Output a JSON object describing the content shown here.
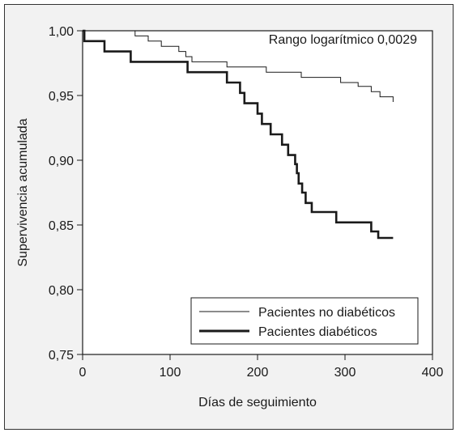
{
  "chart_data": {
    "type": "line",
    "subtype": "kaplan-meier-step",
    "xlabel": "Días de seguimiento",
    "ylabel": "Supervivencia acumulada",
    "annotation": "Rango logarítmico 0,0029",
    "xlim": [
      0,
      400
    ],
    "ylim": [
      0.75,
      1.0
    ],
    "xticks": [
      0,
      100,
      200,
      300,
      400
    ],
    "yticks": [
      0.75,
      0.8,
      0.85,
      0.9,
      0.95,
      1.0
    ],
    "xtick_labels": [
      "0",
      "100",
      "200",
      "300",
      "400"
    ],
    "ytick_labels": [
      "0,75",
      "0,80",
      "0,85",
      "0,90",
      "0,95",
      "1,00"
    ],
    "grid": false,
    "legend_position": "bottom-right",
    "colors": {
      "line": "#1a1a1a",
      "background": "#f2f2f2",
      "plot_background": "#ffffff"
    },
    "series": [
      {
        "name": "Pacientes no diabéticos",
        "style": "thin",
        "x": [
          0,
          60,
          75,
          90,
          110,
          118,
          125,
          165,
          210,
          250,
          295,
          315,
          330,
          340,
          355
        ],
        "y": [
          1.0,
          0.996,
          0.992,
          0.988,
          0.984,
          0.98,
          0.976,
          0.972,
          0.968,
          0.964,
          0.96,
          0.957,
          0.953,
          0.949,
          0.945
        ]
      },
      {
        "name": "Pacientes diabéticos",
        "style": "thick",
        "x": [
          0,
          2,
          25,
          55,
          120,
          165,
          180,
          185,
          200,
          205,
          215,
          228,
          235,
          243,
          245,
          247,
          251,
          255,
          262,
          290,
          330,
          338,
          355
        ],
        "y": [
          1.0,
          0.992,
          0.984,
          0.976,
          0.968,
          0.96,
          0.952,
          0.944,
          0.936,
          0.928,
          0.92,
          0.912,
          0.904,
          0.897,
          0.89,
          0.882,
          0.875,
          0.867,
          0.86,
          0.852,
          0.845,
          0.84,
          0.84
        ]
      }
    ]
  }
}
